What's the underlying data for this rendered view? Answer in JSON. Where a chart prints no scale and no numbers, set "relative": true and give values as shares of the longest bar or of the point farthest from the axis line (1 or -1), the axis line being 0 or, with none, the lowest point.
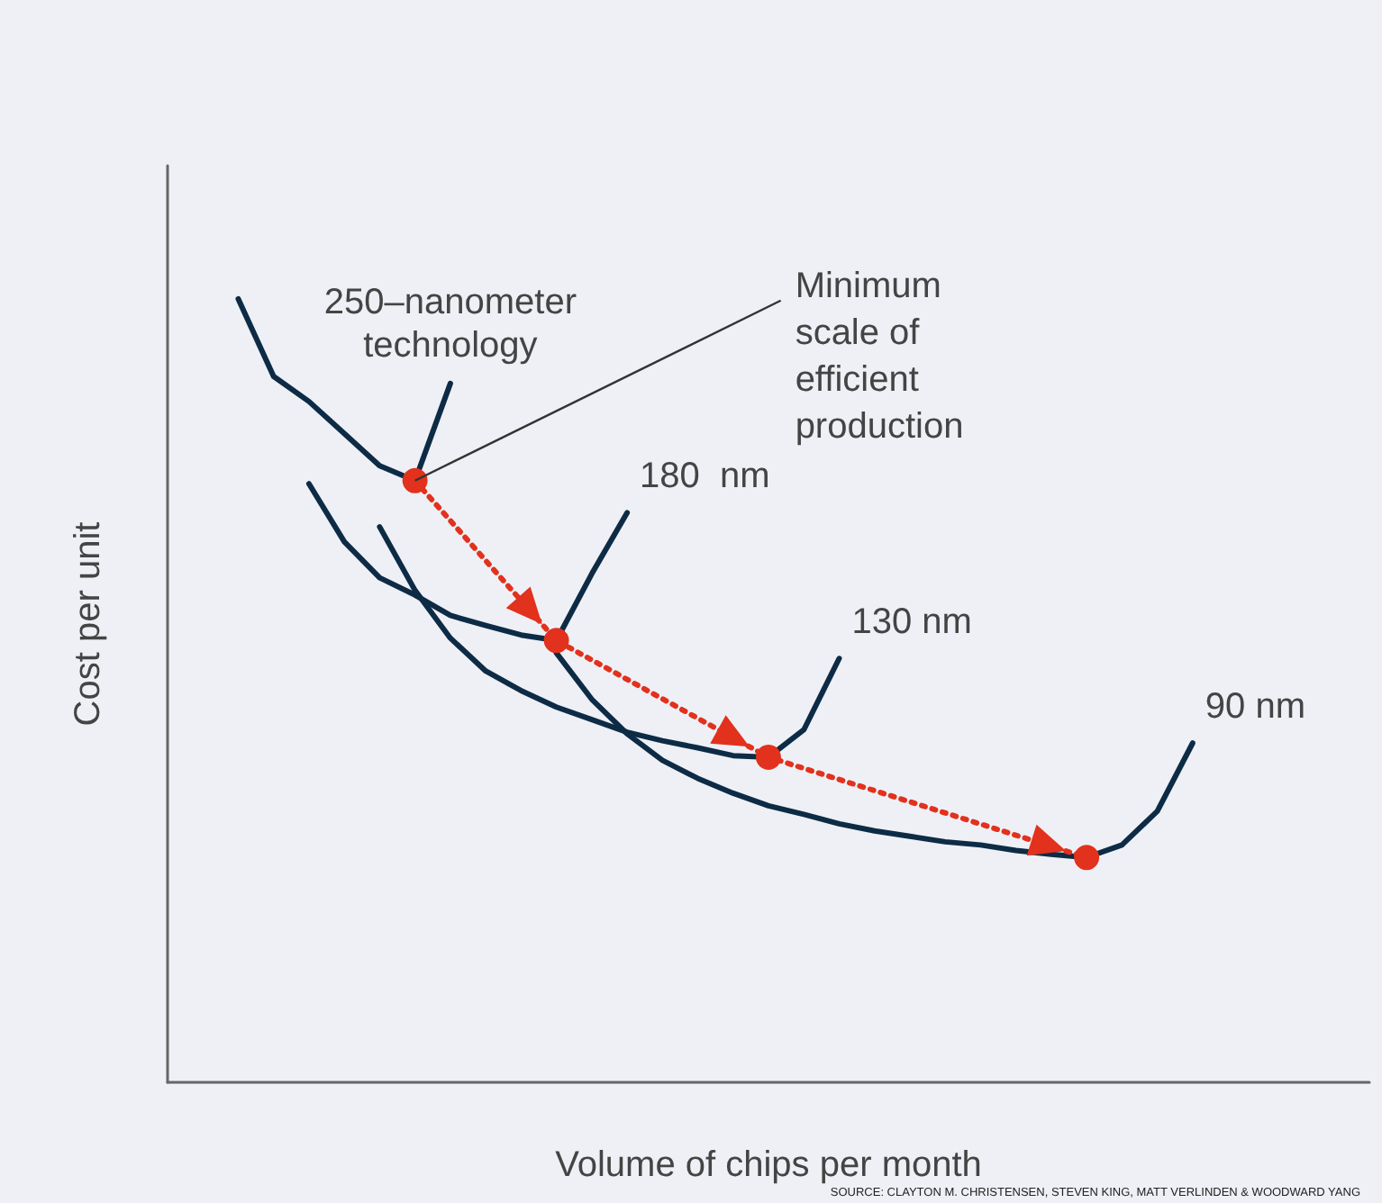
{
  "chart_data": {
    "type": "line",
    "relative": true,
    "legend": false,
    "grid": false,
    "marker": "none",
    "line_style": "solid",
    "xlabel": "Volume of chips per month",
    "ylabel": "Cost per unit",
    "categories": [
      null,
      null,
      null,
      null,
      null,
      null,
      null,
      null,
      null,
      null,
      null,
      null,
      null,
      null,
      null,
      null,
      null,
      null,
      null,
      null,
      null,
      null,
      null,
      null,
      null,
      null,
      null,
      null,
      null,
      null,
      null,
      null,
      null,
      null,
      null
    ],
    "annotations": [
      "Minimum\nscale of\nefficient\nproduction",
      "SOURCE: CLAYTON M. CHRISTENSEN, STEVEN KING, MATT VERLINDEN & WOODWARD YANG"
    ],
    "series": [
      {
        "name": "250–nanometer\ntechnology",
        "color": "#0d2b45",
        "values": [
          null,
          null,
          1.0,
          0.901,
          0.869,
          0.828,
          0.787,
          0.768,
          0.892,
          null,
          null,
          null,
          null,
          null,
          null,
          null,
          null,
          null,
          null,
          null,
          null,
          null,
          null,
          null,
          null,
          null,
          null,
          null,
          null,
          null,
          null,
          null,
          null,
          null,
          null
        ]
      },
      {
        "name": "180  nm",
        "color": "#0d2b45",
        "values": [
          null,
          null,
          null,
          null,
          0.764,
          0.69,
          0.644,
          0.622,
          0.596,
          0.583,
          0.571,
          0.564,
          0.649,
          0.727,
          null,
          null,
          null,
          null,
          null,
          null,
          null,
          null,
          null,
          null,
          null,
          null,
          null,
          null,
          null,
          null,
          null,
          null,
          null,
          null,
          null
        ]
      },
      {
        "name": "130 nm",
        "color": "#0d2b45",
        "values": [
          null,
          null,
          null,
          null,
          null,
          null,
          0.709,
          0.628,
          0.567,
          0.525,
          0.5,
          0.479,
          0.463,
          0.447,
          0.436,
          0.427,
          0.417,
          0.415,
          0.45,
          0.541,
          null,
          null,
          null,
          null,
          null,
          null,
          null,
          null,
          null,
          null,
          null,
          null,
          null,
          null,
          null
        ]
      },
      {
        "name": "90 nm",
        "color": "#0d2b45",
        "values": [
          null,
          null,
          null,
          null,
          null,
          null,
          null,
          null,
          null,
          null,
          null,
          0.548,
          0.489,
          0.445,
          0.411,
          0.388,
          0.369,
          0.353,
          0.342,
          0.33,
          0.321,
          0.314,
          0.307,
          0.303,
          0.296,
          0.291,
          0.287,
          0.303,
          0.346,
          0.433,
          null,
          null,
          null,
          null,
          null
        ]
      },
      {
        "color": "#e2311d",
        "marker": "circle",
        "line_style": "dotted",
        "values": [
          null,
          null,
          null,
          null,
          null,
          null,
          null,
          0.768,
          null,
          null,
          null,
          0.564,
          null,
          null,
          null,
          null,
          null,
          0.415,
          null,
          null,
          null,
          null,
          null,
          null,
          null,
          null,
          0.287,
          null,
          null,
          null,
          null,
          null,
          null,
          null,
          null
        ]
      }
    ]
  }
}
